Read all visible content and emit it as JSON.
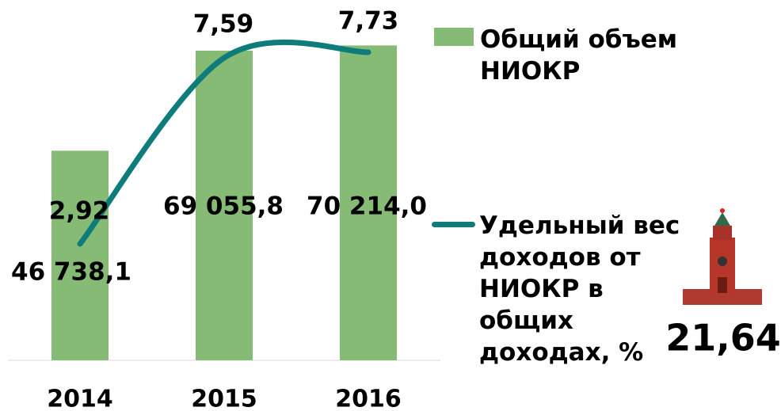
{
  "chart_data": {
    "type": "bar-line",
    "categories": [
      "2014",
      "2015",
      "2016"
    ],
    "series": [
      {
        "name": "Общий объем НИОКР",
        "type": "bar",
        "color": "#85bb75",
        "values": [
          46738.1,
          69055.8,
          70214.0
        ],
        "value_labels": [
          "46 738,1",
          "69 055,8",
          "70 214,0"
        ]
      },
      {
        "name": "Удельный вес доходов от НИОКР в общих доходах, %",
        "type": "line",
        "axis": "y2",
        "color": "#0e7c7b",
        "values": [
          2.92,
          7.59,
          7.73
        ],
        "value_labels": [
          "2,92",
          "7,59",
          "7,73"
        ]
      }
    ],
    "ylim": [
      0,
      80000
    ],
    "y2lim": [
      0,
      9
    ],
    "legend": "right",
    "annotation": "21,64"
  }
}
